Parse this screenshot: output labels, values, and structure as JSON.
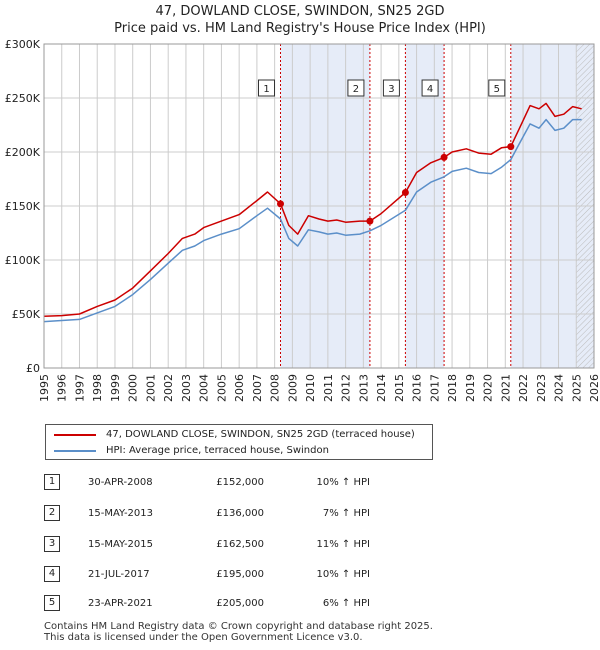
{
  "header": {
    "title": "47, DOWLAND CLOSE, SWINDON, SN25 2GD",
    "subtitle": "Price paid vs. HM Land Registry's House Price Index (HPI)"
  },
  "colors": {
    "property": "#cc0000",
    "hpi": "#5b8fc9",
    "shade": "#e6ecf8",
    "grid": "#cccccc"
  },
  "chart_data": {
    "type": "line",
    "title": "Price paid vs. HM Land Registry's House Price Index (HPI)",
    "xlim": [
      1995,
      2026
    ],
    "ylim": [
      0,
      300000
    ],
    "x_ticks": [
      1995,
      1996,
      1997,
      1998,
      1999,
      2000,
      2001,
      2002,
      2003,
      2004,
      2005,
      2006,
      2007,
      2008,
      2009,
      2010,
      2011,
      2012,
      2013,
      2014,
      2015,
      2016,
      2017,
      2018,
      2019,
      2020,
      2021,
      2022,
      2023,
      2024,
      2025,
      2026
    ],
    "x_tick_labels": [
      "1995",
      "1996",
      "1997",
      "1998",
      "1999",
      "2000",
      "2001",
      "2002",
      "2003",
      "2004",
      "2005",
      "2006",
      "2007",
      "2008",
      "2009",
      "2010",
      "2011",
      "2012",
      "2013",
      "2014",
      "2015",
      "2016",
      "2017",
      "2018",
      "2019",
      "2020",
      "2021",
      "2022",
      "2023",
      "2024",
      "2025",
      "2026"
    ],
    "y_ticks": [
      0,
      50000,
      100000,
      150000,
      200000,
      250000,
      300000
    ],
    "y_tick_labels": [
      "£0",
      "£50K",
      "£100K",
      "£150K",
      "£200K",
      "£250K",
      "£300K"
    ],
    "series": [
      {
        "name": "47, DOWLAND CLOSE, SWINDON, SN25 2GD (terraced house)",
        "x": [
          1995,
          1996,
          1997,
          1998,
          1999,
          2000,
          2001,
          2002,
          2002.8,
          2003.5,
          2004,
          2005,
          2006,
          2007,
          2007.6,
          2008.33,
          2008.8,
          2009.3,
          2009.9,
          2010.5,
          2011,
          2011.5,
          2012,
          2012.8,
          2013.37,
          2014,
          2015.37,
          2016,
          2016.8,
          2017.55,
          2018,
          2018.8,
          2019.5,
          2020.2,
          2020.8,
          2021.31,
          2021.8,
          2022.4,
          2022.9,
          2023.3,
          2023.8,
          2024.3,
          2024.8,
          2025.3
        ],
        "y": [
          48000,
          48500,
          50000,
          57000,
          63000,
          74000,
          90000,
          106000,
          120000,
          124000,
          130000,
          136000,
          142000,
          155000,
          163000,
          152000,
          132000,
          124000,
          141000,
          138000,
          136000,
          137000,
          135000,
          136000,
          136000,
          143000,
          162500,
          181000,
          190000,
          195000,
          200000,
          203000,
          199000,
          198000,
          204000,
          205000,
          222000,
          243000,
          240000,
          245000,
          233000,
          235000,
          242000,
          240000
        ]
      },
      {
        "name": "HPI: Average price, terraced house, Swindon",
        "x": [
          1995,
          1996,
          1997,
          1998,
          1999,
          2000,
          2001,
          2002,
          2002.8,
          2003.5,
          2004,
          2005,
          2006,
          2007,
          2007.6,
          2008.33,
          2008.8,
          2009.3,
          2009.9,
          2010.5,
          2011,
          2011.5,
          2012,
          2012.8,
          2013.37,
          2014,
          2015.37,
          2016,
          2016.8,
          2017.55,
          2018,
          2018.8,
          2019.5,
          2020.2,
          2020.8,
          2021.31,
          2021.8,
          2022.4,
          2022.9,
          2023.3,
          2023.8,
          2024.3,
          2024.8,
          2025.3
        ],
        "y": [
          43000,
          44000,
          45000,
          51000,
          57000,
          68000,
          82000,
          97000,
          109000,
          113000,
          118000,
          124000,
          129000,
          141000,
          148000,
          138000,
          120000,
          113000,
          128000,
          126000,
          124000,
          125000,
          123000,
          124000,
          127000,
          132000,
          146000,
          163000,
          172000,
          177000,
          182000,
          185000,
          181000,
          180000,
          186000,
          193000,
          208000,
          226000,
          222000,
          230000,
          220000,
          222000,
          230000,
          230000
        ]
      }
    ],
    "sales": [
      {
        "label": "1",
        "x": 2008.33,
        "y": 152000
      },
      {
        "label": "2",
        "x": 2013.37,
        "y": 136000
      },
      {
        "label": "3",
        "x": 2015.37,
        "y": 162500
      },
      {
        "label": "4",
        "x": 2017.55,
        "y": 195000
      },
      {
        "label": "5",
        "x": 2021.31,
        "y": 205000
      }
    ],
    "shaded_ranges": [
      [
        2008.33,
        2013.37
      ],
      [
        2015.37,
        2017.55
      ],
      [
        2021.31,
        2026
      ]
    ],
    "hatched_from": 2025.0,
    "grid": true
  },
  "legend": {
    "property_label": "47, DOWLAND CLOSE, SWINDON, SN25 2GD (terraced house)",
    "hpi_label": "HPI: Average price, terraced house, Swindon"
  },
  "transactions": [
    {
      "num": "1",
      "date": "30-APR-2008",
      "price": "£152,000",
      "hpi": "10% ↑ HPI"
    },
    {
      "num": "2",
      "date": "15-MAY-2013",
      "price": "£136,000",
      "hpi": "7% ↑ HPI"
    },
    {
      "num": "3",
      "date": "15-MAY-2015",
      "price": "£162,500",
      "hpi": "11% ↑ HPI"
    },
    {
      "num": "4",
      "date": "21-JUL-2017",
      "price": "£195,000",
      "hpi": "10% ↑ HPI"
    },
    {
      "num": "5",
      "date": "23-APR-2021",
      "price": "£205,000",
      "hpi": "6% ↑ HPI"
    }
  ],
  "footer": {
    "line1": "Contains HM Land Registry data © Crown copyright and database right 2025.",
    "line2": "This data is licensed under the Open Government Licence v3.0."
  }
}
